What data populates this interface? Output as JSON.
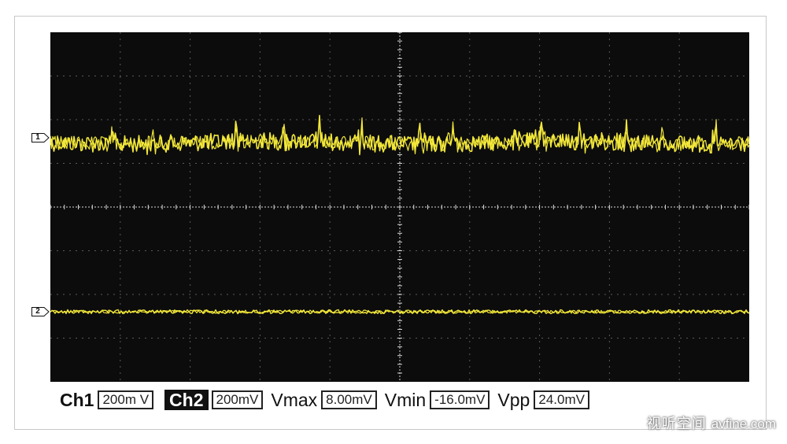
{
  "channels": [
    {
      "marker": "1",
      "trace_color": "#f2e73a"
    },
    {
      "marker": "2",
      "trace_color": "#f2e73a"
    }
  ],
  "grid": {
    "divisions_x": 10,
    "divisions_y": 8,
    "grid_color": "#5a5a5a",
    "center_axis_color": "#d8d8d8",
    "screen_background": "#0c0c0c"
  },
  "readout": {
    "ch1_label": "Ch1",
    "ch1_scale": "200m V",
    "ch2_label": "Ch2",
    "ch2_scale": "200mV",
    "vmax_label": "Vmax",
    "vmax_value": "8.00mV",
    "vmin_label": "Vmin",
    "vmin_value": "-16.0mV",
    "vpp_label": "Vpp",
    "vpp_value": "24.0mV"
  },
  "watermark": {
    "text": "视听空间",
    "site": "avfine.com"
  }
}
